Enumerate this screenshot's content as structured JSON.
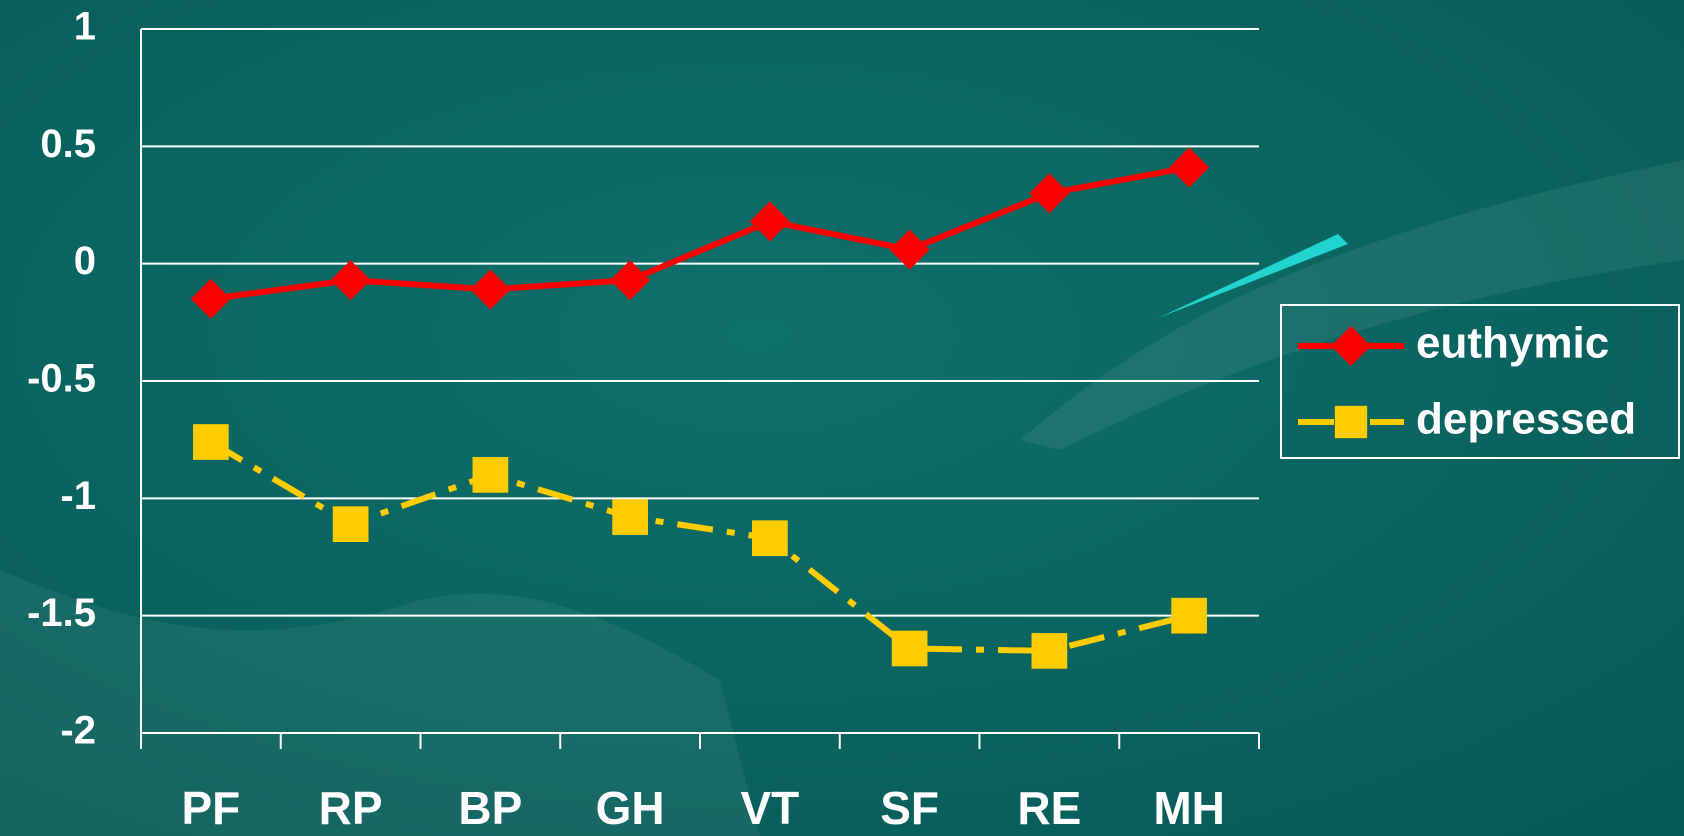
{
  "chart_data": {
    "type": "line",
    "categories": [
      "PF",
      "RP",
      "BP",
      "GH",
      "VT",
      "SF",
      "RE",
      "MH"
    ],
    "series": [
      {
        "name": "euthymic",
        "color": "#ff0000",
        "marker": "diamond",
        "dash": "solid",
        "values": [
          -0.15,
          -0.07,
          -0.11,
          -0.07,
          0.18,
          0.06,
          0.3,
          0.41
        ]
      },
      {
        "name": "depressed",
        "color": "#ffcc00",
        "marker": "square",
        "dash": "dashdot",
        "values": [
          -0.76,
          -1.11,
          -0.9,
          -1.08,
          -1.17,
          -1.64,
          -1.65,
          -1.5
        ]
      }
    ],
    "ylim": [
      -2,
      1
    ],
    "yticks": [
      -2,
      -1.5,
      -1,
      -0.5,
      0,
      0.5,
      1
    ],
    "grid": true,
    "legend": "right"
  }
}
